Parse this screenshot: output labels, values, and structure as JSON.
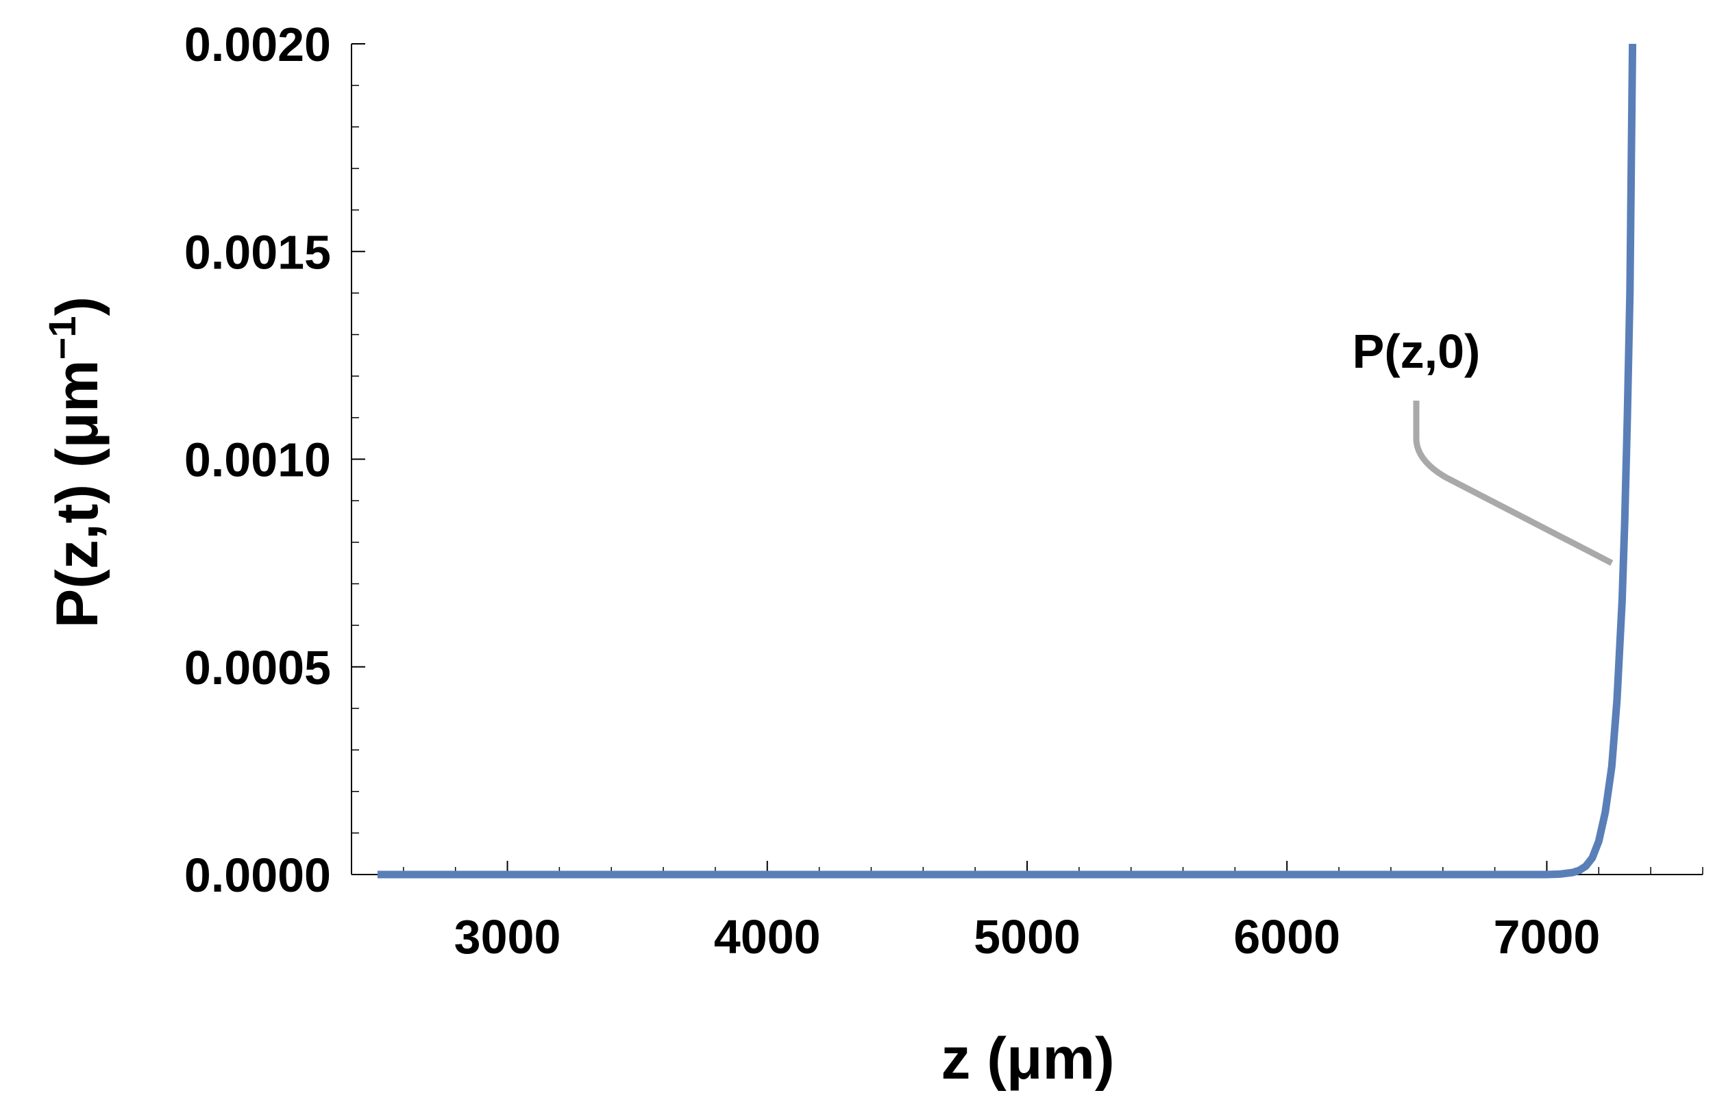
{
  "chart_data": {
    "type": "line",
    "title": "",
    "xlabel": "z (μm)",
    "ylabel_main": "P(z,t) (μm",
    "ylabel_sup": "−1",
    "ylabel_close": ")",
    "xlim": [
      2400,
      7600
    ],
    "ylim": [
      0,
      0.002
    ],
    "x_ticks": [
      3000,
      4000,
      5000,
      6000,
      7000
    ],
    "x_tick_labels": [
      "3000",
      "4000",
      "5000",
      "6000",
      "7000"
    ],
    "y_ticks": [
      0,
      0.0005,
      0.001,
      0.0015,
      0.002
    ],
    "y_tick_labels": [
      "0.0000",
      "0.0005",
      "0.0010",
      "0.0015",
      "0.0020"
    ],
    "grid": false,
    "legend": "none",
    "series": [
      {
        "name": "P(z,0)",
        "color": "#5a7fb8",
        "x": [
          2500,
          3000,
          4000,
          5000,
          6000,
          6800,
          7000,
          7050,
          7100,
          7125,
          7150,
          7175,
          7200,
          7225,
          7250,
          7270,
          7290,
          7300,
          7310,
          7320,
          7330
        ],
        "y": [
          0,
          0,
          0,
          0,
          0,
          0,
          0,
          1e-06,
          5e-06,
          1e-05,
          2e-05,
          4e-05,
          8e-05,
          0.00015,
          0.00026,
          0.00042,
          0.00066,
          0.00085,
          0.0011,
          0.0014,
          0.002
        ]
      }
    ],
    "annotations": [
      {
        "text": "P(z,0)",
        "points_to": {
          "x": 7250,
          "y": 0.00075
        }
      }
    ],
    "leader_color": "#a9a9a9"
  }
}
